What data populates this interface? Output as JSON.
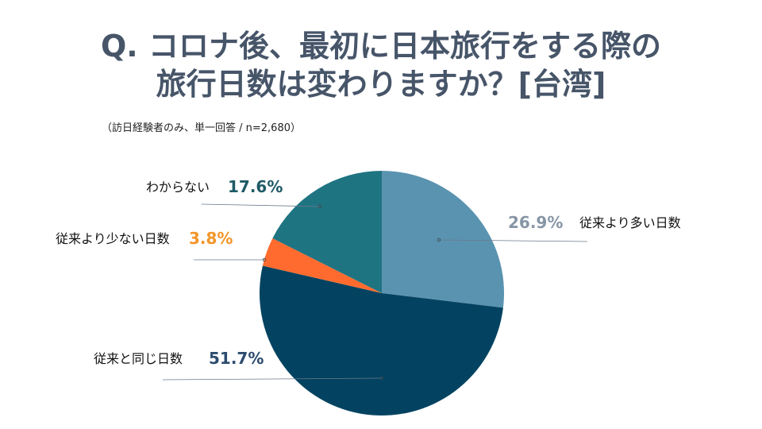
{
  "title_line1": "Q. コロナ後、最初に日本旅行をする際の",
  "title_line2": "旅行日数は変わりますか？[台湾]",
  "subtitle": "（訪日経験者のみ、単一回答 / n=2,680）",
  "chart_data": {
    "type": "pie",
    "start_angle": "12 o'clock, clockwise",
    "slices": [
      {
        "label": "従来より多い日数",
        "value": 26.9,
        "value_label": "26.9%",
        "color": "#5A93B0",
        "value_color": "#8796A6"
      },
      {
        "label": "従来と同じ日数",
        "value": 51.7,
        "value_label": "51.7%",
        "color": "#034361",
        "value_color": "#2D4C6E"
      },
      {
        "label": "従来より少ない日数",
        "value": 3.8,
        "value_label": "3.8%",
        "color": "#FF6B2E",
        "value_color": "#F2962A"
      },
      {
        "label": "わからない",
        "value": 17.6,
        "value_label": "17.6%",
        "color": "#1F7482",
        "value_color": "#1E5A66"
      }
    ]
  }
}
